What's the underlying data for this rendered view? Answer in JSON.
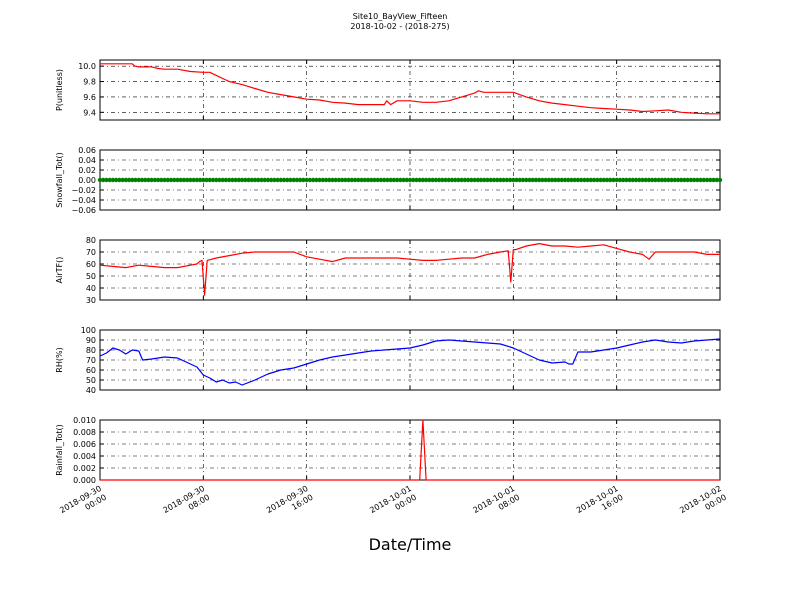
{
  "figure": {
    "title": "Site10_BayView_Fifteen",
    "subtitle": "2018-10-02 - (2018-275)",
    "xlabel": "Date/Time",
    "x_ticks": [
      {
        "line1": "2018-09-30",
        "line2": "00:00",
        "t": 0
      },
      {
        "line1": "2018-09-30",
        "line2": "08:00",
        "t": 8
      },
      {
        "line1": "2018-09-30",
        "line2": "16:00",
        "t": 16
      },
      {
        "line1": "2018-10-01",
        "line2": "00:00",
        "t": 24
      },
      {
        "line1": "2018-10-01",
        "line2": "08:00",
        "t": 32
      },
      {
        "line1": "2018-10-01",
        "line2": "16:00",
        "t": 40
      },
      {
        "line1": "2018-10-02",
        "line2": "00:00",
        "t": 48
      }
    ]
  },
  "chart_data": [
    {
      "type": "line",
      "ylabel": "P(unitless)",
      "color": "#ff0000",
      "ylim": [
        9.3,
        10.08
      ],
      "yticks": [
        "10.0",
        "9.8",
        "9.6",
        "9.4"
      ],
      "ytick_values": [
        10.0,
        9.8,
        9.6,
        9.4
      ],
      "grid": true,
      "x_hours": [
        0,
        2.5,
        2.7,
        3,
        4,
        4.5,
        5,
        6,
        7,
        8,
        8.5,
        9,
        9.5,
        10,
        10.5,
        11,
        12,
        13,
        14,
        15,
        16,
        17,
        18,
        19,
        20,
        21,
        22,
        22.2,
        22.5,
        23,
        24,
        25,
        26,
        27,
        28,
        29,
        29.3,
        29.7,
        31,
        32,
        33,
        34,
        35,
        36,
        37,
        38,
        39,
        40,
        41,
        42,
        43,
        44,
        45,
        46,
        47,
        48
      ],
      "values": [
        10.03,
        10.03,
        10.0,
        9.99,
        9.99,
        9.97,
        9.96,
        9.96,
        9.93,
        9.92,
        9.92,
        9.88,
        9.84,
        9.8,
        9.78,
        9.76,
        9.71,
        9.66,
        9.63,
        9.6,
        9.57,
        9.56,
        9.53,
        9.52,
        9.5,
        9.5,
        9.5,
        9.55,
        9.5,
        9.55,
        9.55,
        9.53,
        9.53,
        9.55,
        9.6,
        9.65,
        9.68,
        9.66,
        9.66,
        9.66,
        9.6,
        9.55,
        9.52,
        9.5,
        9.48,
        9.46,
        9.45,
        9.44,
        9.43,
        9.41,
        9.42,
        9.43,
        9.4,
        9.39,
        9.38,
        9.38
      ]
    },
    {
      "type": "scatter",
      "ylabel": "Snowfall_Tot()",
      "color": "#008000",
      "ylim": [
        -0.06,
        0.06
      ],
      "yticks": [
        "0.06",
        "0.04",
        "0.02",
        "0.00",
        "−0.02",
        "−0.04",
        "−0.06"
      ],
      "ytick_values": [
        0.06,
        0.04,
        0.02,
        0.0,
        -0.02,
        -0.04,
        -0.06
      ],
      "grid": true,
      "sampling_interval_hours": 0.25,
      "constant_value": 0.0
    },
    {
      "type": "line",
      "ylabel": "AirTF()",
      "color": "#ff0000",
      "ylim": [
        30,
        80
      ],
      "yticks": [
        "80",
        "70",
        "60",
        "50",
        "40",
        "30"
      ],
      "ytick_values": [
        80,
        70,
        60,
        50,
        40,
        30
      ],
      "grid": true,
      "x_hours": [
        0,
        1,
        2,
        3,
        4,
        5,
        6,
        7,
        7.5,
        7.7,
        7.9,
        8.1,
        8.3,
        9,
        10,
        11,
        12,
        13,
        14,
        15,
        16,
        17,
        18,
        19,
        20,
        21,
        22,
        23,
        24,
        25,
        26,
        27,
        28,
        29,
        30,
        31,
        31.6,
        31.8,
        32,
        32.2,
        33,
        34,
        35,
        36,
        37,
        38,
        39,
        40,
        41,
        42,
        42.5,
        43,
        44,
        45,
        46,
        47,
        48
      ],
      "values": [
        59,
        58,
        57,
        59,
        58,
        57,
        57,
        59,
        60,
        62,
        63,
        34,
        63,
        65,
        67,
        69,
        70,
        70,
        70,
        70,
        66,
        64,
        62,
        65,
        65,
        65,
        65,
        65,
        64,
        63,
        63,
        64,
        65,
        65,
        68,
        70,
        71,
        45,
        72,
        72,
        75,
        77,
        75,
        75,
        74,
        75,
        76,
        73,
        70,
        68,
        64,
        70,
        70,
        70,
        70,
        68,
        68
      ]
    },
    {
      "type": "line",
      "ylabel": "RH(%)",
      "color": "#0000ff",
      "ylim": [
        40,
        100
      ],
      "yticks": [
        "100",
        "90",
        "80",
        "70",
        "60",
        "50",
        "40"
      ],
      "ytick_values": [
        100,
        90,
        80,
        70,
        60,
        50,
        40
      ],
      "grid": true,
      "x_hours": [
        0,
        0.5,
        1,
        1.5,
        2,
        2.5,
        3,
        3.3,
        4,
        5,
        6,
        7,
        7.5,
        8,
        8.5,
        9,
        9.5,
        10,
        10.5,
        11,
        12,
        13,
        14,
        15,
        16,
        17,
        18,
        19,
        20,
        21,
        22,
        23,
        24,
        25,
        26,
        27,
        28,
        29,
        30,
        31,
        32,
        33,
        34,
        35,
        36,
        36.3,
        36.6,
        37,
        38,
        39,
        40,
        41,
        42,
        43,
        44,
        45,
        46,
        47,
        48
      ],
      "values": [
        74,
        77,
        82,
        80,
        76,
        80,
        79,
        70,
        71,
        73,
        72,
        66,
        63,
        55,
        52,
        48,
        50,
        47,
        48,
        45,
        50,
        56,
        60,
        62,
        66,
        70,
        73,
        75,
        77,
        79,
        80,
        81,
        82,
        85,
        89,
        90,
        89,
        88,
        87,
        86,
        82,
        76,
        70,
        67,
        68,
        66,
        66,
        78,
        78,
        80,
        82,
        85,
        88,
        90,
        88,
        87,
        89,
        90,
        91
      ]
    },
    {
      "type": "line",
      "ylabel": "Rainfall_Tot()",
      "color": "#ff0000",
      "ylim": [
        0,
        0.01
      ],
      "yticks": [
        "0.010",
        "0.008",
        "0.006",
        "0.004",
        "0.002",
        "0.000"
      ],
      "ytick_values": [
        0.01,
        0.008,
        0.006,
        0.004,
        0.002,
        0.0
      ],
      "grid": true,
      "x_hours": [
        0,
        24.75,
        25.0,
        25.25,
        48
      ],
      "values": [
        0,
        0,
        0.01,
        0,
        0
      ]
    }
  ]
}
